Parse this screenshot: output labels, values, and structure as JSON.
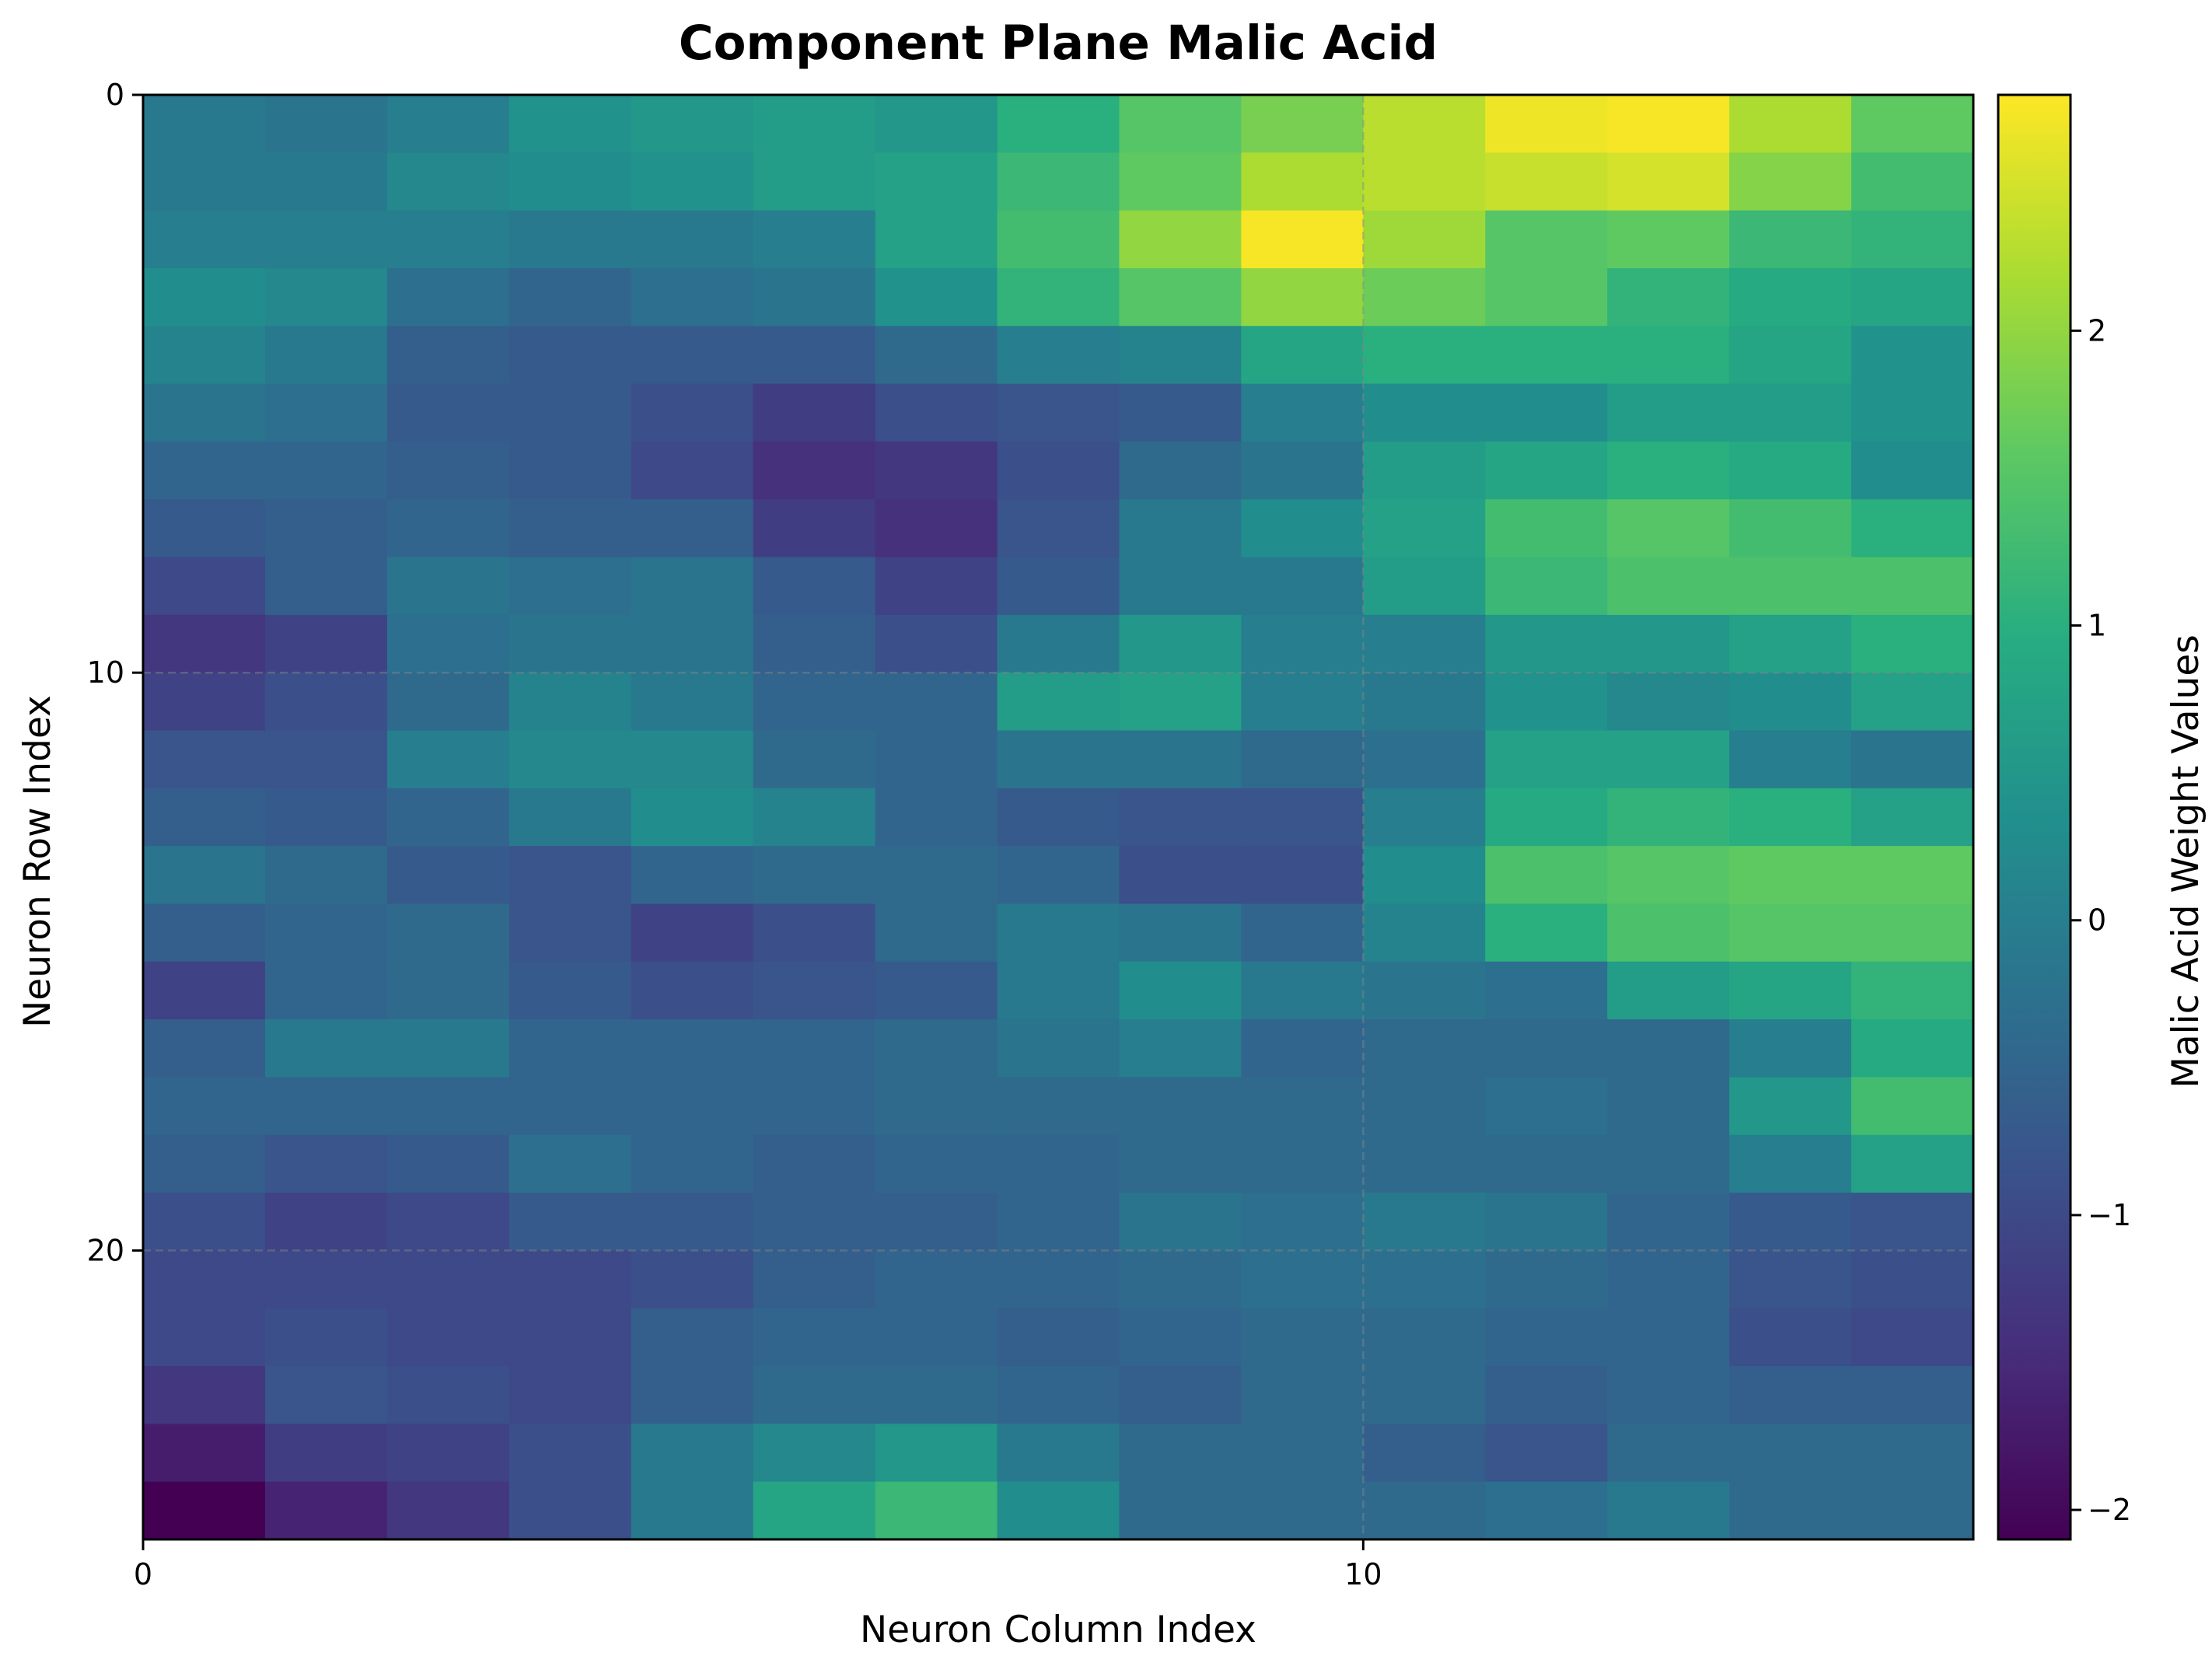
{
  "chart_data": {
    "type": "heatmap",
    "title": "Component Plane Malic Acid",
    "xlabel": "Neuron Column Index",
    "ylabel": "Neuron Row Index",
    "colorbar_label": "Malic Acid Weight Values",
    "colormap": "viridis",
    "xlim": [
      0,
      15
    ],
    "ylim": [
      0,
      25
    ],
    "x_ticks": [
      0,
      10
    ],
    "y_ticks": [
      0,
      10,
      20
    ],
    "colorbar_range": [
      -2.1,
      2.8
    ],
    "colorbar_ticks": [
      -2,
      -1,
      0,
      1,
      2
    ],
    "grid": true,
    "values": [
      [
        -0.1,
        -0.2,
        0.0,
        0.4,
        0.5,
        0.6,
        0.5,
        1.0,
        1.5,
        1.8,
        2.3,
        2.7,
        2.75,
        2.2,
        1.6
      ],
      [
        -0.1,
        -0.1,
        0.2,
        0.3,
        0.4,
        0.6,
        0.7,
        1.2,
        1.6,
        2.2,
        2.3,
        2.4,
        2.5,
        1.9,
        1.3
      ],
      [
        0.0,
        0.0,
        0.0,
        -0.1,
        -0.1,
        0.0,
        0.7,
        1.3,
        2.0,
        2.75,
        2.1,
        1.5,
        1.6,
        1.2,
        1.1
      ],
      [
        0.3,
        0.2,
        -0.3,
        -0.5,
        -0.3,
        -0.2,
        0.4,
        1.1,
        1.5,
        2.0,
        1.7,
        1.5,
        1.1,
        0.9,
        0.8
      ],
      [
        0.1,
        -0.1,
        -0.6,
        -0.7,
        -0.7,
        -0.7,
        -0.4,
        0.0,
        0.1,
        0.8,
        1.0,
        1.0,
        1.0,
        0.8,
        0.4
      ],
      [
        -0.2,
        -0.3,
        -0.7,
        -0.7,
        -0.9,
        -1.2,
        -0.9,
        -0.8,
        -0.7,
        0.0,
        0.3,
        0.3,
        0.6,
        0.6,
        0.4
      ],
      [
        -0.5,
        -0.5,
        -0.6,
        -0.7,
        -1.0,
        -1.4,
        -1.3,
        -0.9,
        -0.4,
        -0.2,
        0.6,
        0.8,
        1.0,
        0.9,
        0.3
      ],
      [
        -0.7,
        -0.6,
        -0.5,
        -0.6,
        -0.6,
        -1.2,
        -1.4,
        -0.8,
        -0.1,
        0.3,
        0.7,
        1.3,
        1.5,
        1.3,
        1.0
      ],
      [
        -1.0,
        -0.6,
        -0.2,
        -0.3,
        -0.2,
        -0.7,
        -1.1,
        -0.7,
        -0.1,
        -0.1,
        0.6,
        1.2,
        1.4,
        1.4,
        1.4
      ],
      [
        -1.3,
        -1.1,
        -0.3,
        -0.2,
        -0.2,
        -0.6,
        -0.9,
        -0.1,
        0.5,
        0.0,
        0.0,
        0.5,
        0.5,
        0.7,
        1.0
      ],
      [
        -1.1,
        -0.9,
        -0.4,
        0.1,
        -0.1,
        -0.5,
        -0.5,
        0.6,
        0.7,
        0.0,
        -0.1,
        0.4,
        0.2,
        0.3,
        0.7
      ],
      [
        -0.8,
        -0.8,
        0.0,
        0.2,
        0.2,
        -0.4,
        -0.5,
        -0.2,
        -0.2,
        -0.4,
        -0.3,
        0.7,
        0.7,
        0.0,
        -0.2
      ],
      [
        -0.6,
        -0.7,
        -0.5,
        -0.1,
        0.3,
        0.1,
        -0.5,
        -0.7,
        -0.8,
        -0.8,
        0.0,
        0.9,
        1.1,
        1.0,
        0.7
      ],
      [
        -0.2,
        -0.4,
        -0.7,
        -0.8,
        -0.5,
        -0.4,
        -0.4,
        -0.5,
        -0.9,
        -0.9,
        0.3,
        1.4,
        1.5,
        1.6,
        1.6
      ],
      [
        -0.6,
        -0.5,
        -0.4,
        -0.8,
        -1.1,
        -0.9,
        -0.4,
        -0.1,
        -0.2,
        -0.5,
        0.1,
        1.0,
        1.4,
        1.5,
        1.5
      ],
      [
        -1.1,
        -0.5,
        -0.4,
        -0.7,
        -0.9,
        -0.8,
        -0.7,
        -0.1,
        0.3,
        -0.1,
        -0.2,
        -0.3,
        0.6,
        0.8,
        1.1
      ],
      [
        -0.6,
        -0.1,
        -0.1,
        -0.5,
        -0.5,
        -0.5,
        -0.4,
        -0.2,
        0.0,
        -0.5,
        -0.4,
        -0.4,
        -0.4,
        0.0,
        0.9
      ],
      [
        -0.5,
        -0.5,
        -0.5,
        -0.5,
        -0.5,
        -0.5,
        -0.4,
        -0.4,
        -0.4,
        -0.4,
        -0.4,
        -0.3,
        -0.4,
        0.5,
        1.3
      ],
      [
        -0.6,
        -0.8,
        -0.7,
        -0.3,
        -0.5,
        -0.6,
        -0.5,
        -0.5,
        -0.4,
        -0.4,
        -0.4,
        -0.4,
        -0.4,
        0.0,
        0.7
      ],
      [
        -0.9,
        -1.1,
        -1.0,
        -0.7,
        -0.7,
        -0.6,
        -0.6,
        -0.5,
        -0.2,
        -0.3,
        -0.1,
        -0.2,
        -0.5,
        -0.7,
        -0.8
      ],
      [
        -1.0,
        -1.0,
        -1.0,
        -1.0,
        -0.9,
        -0.6,
        -0.5,
        -0.5,
        -0.4,
        -0.3,
        -0.3,
        -0.4,
        -0.5,
        -0.8,
        -0.9
      ],
      [
        -1.0,
        -0.9,
        -1.0,
        -1.0,
        -0.6,
        -0.5,
        -0.5,
        -0.6,
        -0.5,
        -0.4,
        -0.4,
        -0.5,
        -0.5,
        -0.9,
        -1.0
      ],
      [
        -1.3,
        -0.8,
        -0.9,
        -1.0,
        -0.6,
        -0.4,
        -0.4,
        -0.5,
        -0.6,
        -0.4,
        -0.4,
        -0.6,
        -0.5,
        -0.6,
        -0.6
      ],
      [
        -1.7,
        -1.2,
        -1.1,
        -0.9,
        -0.1,
        0.2,
        0.5,
        -0.1,
        -0.4,
        -0.4,
        -0.6,
        -0.8,
        -0.4,
        -0.4,
        -0.4
      ],
      [
        -2.1,
        -1.6,
        -1.3,
        -0.9,
        -0.1,
        0.8,
        1.2,
        0.3,
        -0.4,
        -0.4,
        -0.4,
        -0.3,
        -0.1,
        -0.4,
        -0.4
      ]
    ]
  }
}
